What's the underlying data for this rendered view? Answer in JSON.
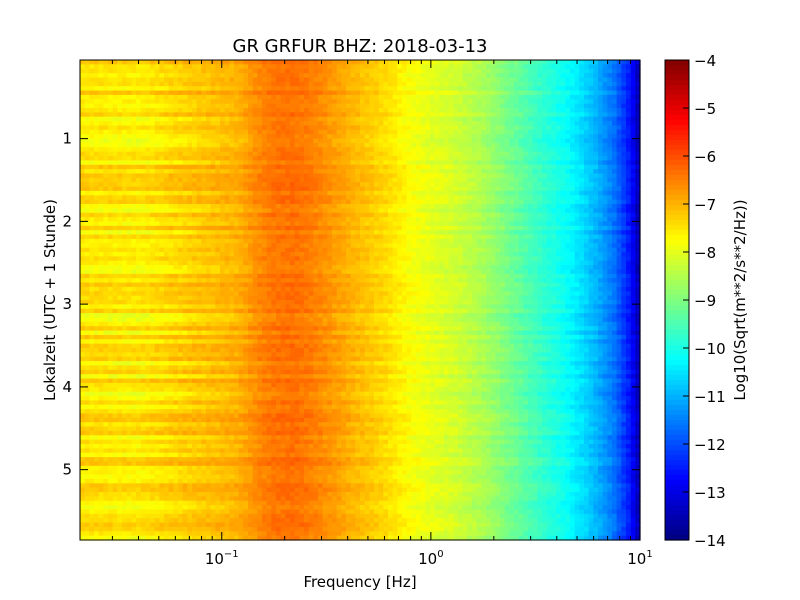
{
  "chart_data": {
    "type": "heatmap",
    "title": "GR GRFUR BHZ: 2018-03-13",
    "xlabel": "Frequency [Hz]",
    "ylabel": "Lokalzeit (UTC + 1 Stunde)",
    "colorbar_label": "Log10(Sqrt(m**2/s**2/Hz))",
    "colormap": "jet",
    "x_scale": "log",
    "xlim": [
      0.021,
      10
    ],
    "ylim": [
      5.85,
      0.05
    ],
    "clim": [
      -14,
      -4
    ],
    "x_ticks": [
      {
        "value": 0.1,
        "base": "10",
        "exp": "−1"
      },
      {
        "value": 1,
        "base": "10",
        "exp": "0"
      },
      {
        "value": 10,
        "base": "10",
        "exp": "1"
      }
    ],
    "y_ticks": [
      1,
      2,
      3,
      4,
      5
    ],
    "colorbar_ticks": [
      "−4",
      "−5",
      "−6",
      "−7",
      "−8",
      "−9",
      "−10",
      "−11",
      "−12",
      "−13",
      "−14"
    ],
    "profile": {
      "frequency_hz": [
        0.021,
        0.04,
        0.08,
        0.12,
        0.15,
        0.18,
        0.22,
        0.27,
        0.35,
        0.45,
        0.6,
        0.8,
        1.0,
        1.3,
        1.8,
        2.5,
        3.5,
        4.5,
        6,
        7.5,
        9,
        10
      ],
      "log10_amplitude": [
        -7.5,
        -7.6,
        -7.2,
        -7.0,
        -6.6,
        -6.4,
        -6.35,
        -6.5,
        -6.8,
        -7.1,
        -7.4,
        -7.8,
        -8.0,
        -8.2,
        -8.6,
        -9.2,
        -9.8,
        -10.2,
        -10.9,
        -11.6,
        -12.6,
        -13.6
      ]
    },
    "rows": 110
  }
}
